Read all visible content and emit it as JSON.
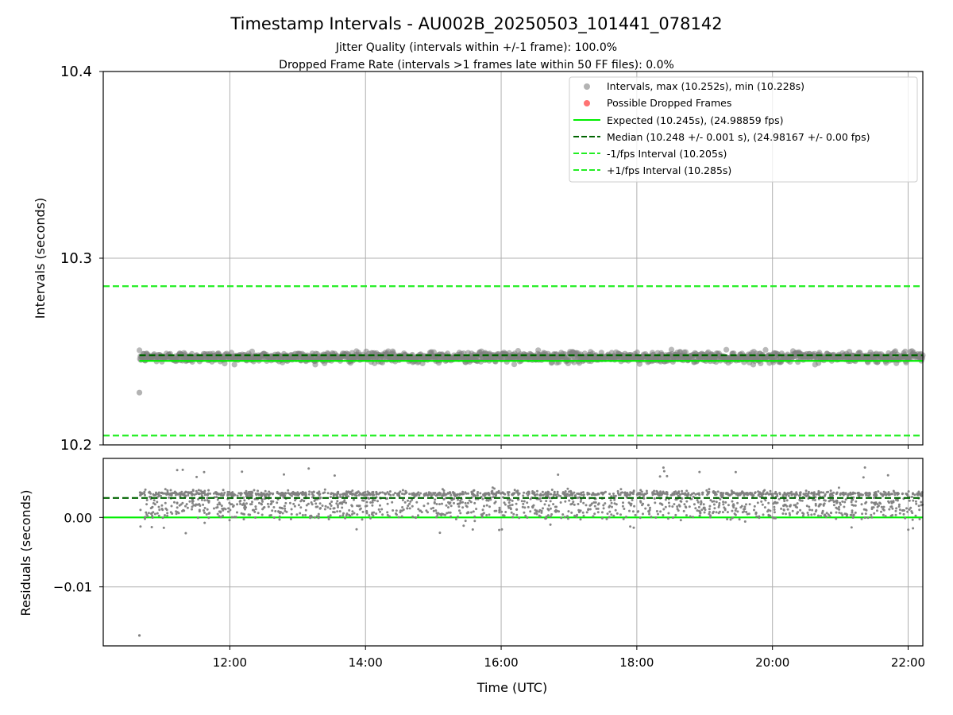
{
  "colors": {
    "points": "#808080",
    "dropped": "#ff0000",
    "expected": "#00ee00",
    "median": "#006400",
    "fps_interval": "#22ee22",
    "grid": "#b0b0b0"
  },
  "chart_data": [
    {
      "type": "scatter",
      "title": "Timestamp Intervals - AU002B_20250503_101441_078142",
      "subtitle_lines": [
        "Jitter Quality (intervals within +/-1 frame): 100.0%",
        "Dropped Frame Rate (intervals >1 frames late within 50 FF files): 0.0%"
      ],
      "ylabel": "Intervals (seconds)",
      "ylim": [
        10.2,
        10.4
      ],
      "yticks": [
        "10.2",
        "10.3",
        "10.4"
      ],
      "xlim": [
        "10:08",
        "22:13"
      ],
      "grid": true,
      "legend_position": "top-right",
      "legend": [
        "Intervals, max (10.252s), min (10.228s)",
        "Possible Dropped Frames",
        "Expected (10.245s), (24.98859 fps)",
        "Median (10.248 +/- 0.001 s), (24.98167 +/- 0.00 fps)",
        "-1/fps Interval (10.205s)",
        "+1/fps Interval (10.285s)"
      ],
      "series": [
        {
          "name": "Intervals, max (10.252s), min (10.228s)",
          "time_range": [
            "10:40",
            "22:13"
          ],
          "typical_range": [
            10.244,
            10.25
          ],
          "max": 10.252,
          "min": 10.228,
          "min_at": "10:40"
        },
        {
          "name": "Possible Dropped Frames",
          "values": []
        }
      ],
      "hlines": [
        {
          "name": "Expected (10.245s), (24.98859 fps)",
          "y": 10.245,
          "style": "solid",
          "x_start": "10:40"
        },
        {
          "name": "Median (10.248 +/- 0.001 s), (24.98167 +/- 0.00 fps)",
          "y": 10.248,
          "style": "dashed",
          "x_start": "10:40"
        },
        {
          "name": "-1/fps Interval (10.205s)",
          "y": 10.205,
          "style": "dashed"
        },
        {
          "name": "+1/fps Interval (10.285s)",
          "y": 10.285,
          "style": "dashed"
        }
      ]
    },
    {
      "type": "scatter",
      "ylabel": "Residuals (seconds)",
      "xlabel": "Time (UTC)",
      "ylim": [
        -0.0185,
        0.0085
      ],
      "yticks": [
        "0.00",
        "−0.01"
      ],
      "xticks": [
        "12:00",
        "14:00",
        "16:00",
        "18:00",
        "20:00",
        "22:00"
      ],
      "xlim": [
        "10:08",
        "22:13"
      ],
      "grid": true,
      "series": [
        {
          "name": "Residuals",
          "time_range": [
            "10:40",
            "22:13"
          ],
          "typical_range": [
            0.0,
            0.004
          ],
          "max": 0.0072,
          "min": -0.017,
          "min_at": "10:40"
        }
      ],
      "hlines": [
        {
          "name": "zero",
          "y": 0.0,
          "style": "solid"
        },
        {
          "name": "median offset",
          "y": 0.0028,
          "style": "dashed"
        }
      ]
    }
  ]
}
